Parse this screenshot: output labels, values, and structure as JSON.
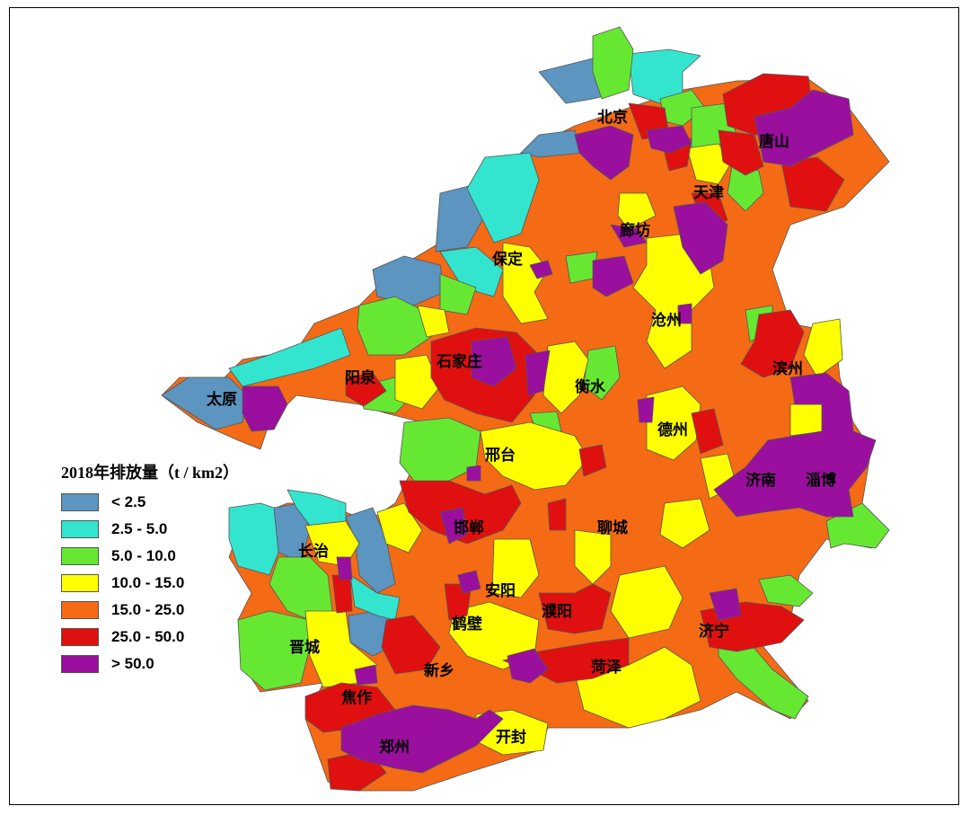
{
  "legend": {
    "title": "2018年排放量（t / km2）",
    "items": [
      {
        "label": "< 2.5",
        "color": "#5b95c0"
      },
      {
        "label": "2.5 - 5.0",
        "color": "#33e5cf"
      },
      {
        "label": "5.0 - 10.0",
        "color": "#66e833"
      },
      {
        "label": "10.0 - 15.0",
        "color": "#ffff00"
      },
      {
        "label": "15.0 - 25.0",
        "color": "#f56a14"
      },
      {
        "label": "25.0 - 50.0",
        "color": "#e01010"
      },
      {
        "label": "> 50.0",
        "color": "#9a0f9e"
      }
    ]
  },
  "cities": {
    "beijing": "北京",
    "tangshan": "唐山",
    "tianjin": "天津",
    "langfang": "廊坊",
    "baoding": "保定",
    "cangzhou": "沧州",
    "binzhou": "滨州",
    "shijiazhuang": "石家庄",
    "yangquan": "阳泉",
    "taiyuan": "太原",
    "hengshui": "衡水",
    "dezhou": "德州",
    "xingtai": "邢台",
    "jinan": "济南",
    "zibo": "淄博",
    "handan": "邯郸",
    "liaocheng": "聊城",
    "changzhi": "长治",
    "anyang": "安阳",
    "puyang": "濮阳",
    "hebi": "鹤壁",
    "jining": "济宁",
    "jincheng": "晋城",
    "xinxiang": "新乡",
    "heze": "菏泽",
    "jiaozuo": "焦作",
    "kaifeng": "开封",
    "zhengzhou": "郑州"
  }
}
